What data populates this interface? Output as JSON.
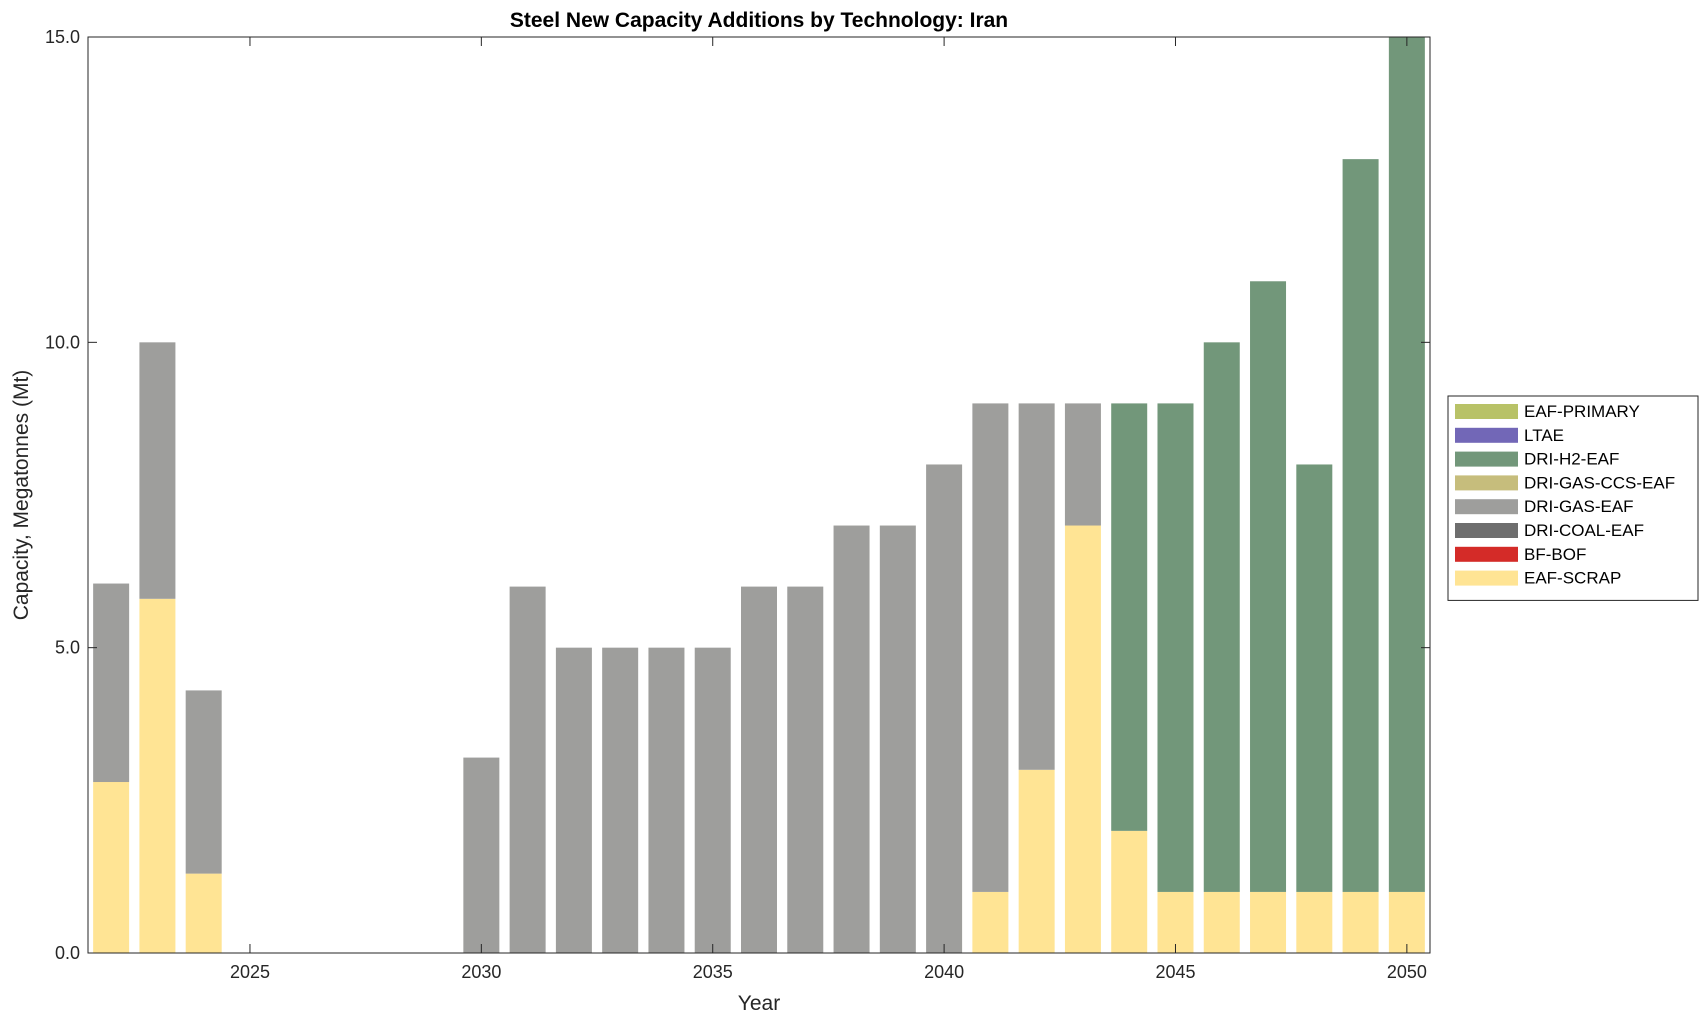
{
  "chart_data": {
    "type": "bar",
    "stacked": true,
    "title": "Steel New Capacity Additions by Technology: Iran",
    "xlabel": "Year",
    "ylabel": "Capacity, Megatonnes (Mt)",
    "xlim": [
      2021.5,
      2050.5
    ],
    "ylim": [
      0,
      15
    ],
    "x_ticks": [
      2025,
      2030,
      2035,
      2040,
      2045,
      2050
    ],
    "y_ticks": [
      0,
      5,
      10,
      15
    ],
    "y_tick_labels": [
      "0.0",
      "5.0",
      "10.0",
      "15.0"
    ],
    "grid": false,
    "legend_position": "right",
    "x": [
      2022,
      2023,
      2024,
      2025,
      2026,
      2027,
      2028,
      2029,
      2030,
      2031,
      2032,
      2033,
      2034,
      2035,
      2036,
      2037,
      2038,
      2039,
      2040,
      2041,
      2042,
      2043,
      2044,
      2045,
      2046,
      2047,
      2048,
      2049,
      2050
    ],
    "series": [
      {
        "name": "EAF-SCRAP",
        "color": "#FFE494",
        "values": [
          2.8,
          5.8,
          1.3,
          0,
          0,
          0,
          0,
          0,
          0,
          0,
          0,
          0,
          0,
          0,
          0,
          0,
          0,
          0,
          0,
          1,
          3,
          7,
          2,
          1,
          1,
          1,
          1,
          1,
          1
        ]
      },
      {
        "name": "BF-BOF",
        "color": "#D42B28",
        "values": [
          0,
          0,
          0,
          0,
          0,
          0,
          0,
          0,
          0,
          0,
          0,
          0,
          0,
          0,
          0,
          0,
          0,
          0,
          0,
          0,
          0,
          0,
          0,
          0,
          0,
          0,
          0,
          0,
          0
        ]
      },
      {
        "name": "DRI-COAL-EAF",
        "color": "#6E6E6E",
        "values": [
          0,
          0,
          0,
          0,
          0,
          0,
          0,
          0,
          0,
          0,
          0,
          0,
          0,
          0,
          0,
          0,
          0,
          0,
          0,
          0,
          0,
          0,
          0,
          0,
          0,
          0,
          0,
          0,
          0
        ]
      },
      {
        "name": "DRI-GAS-EAF",
        "color": "#9E9E9C",
        "values": [
          3.25,
          4.2,
          3.0,
          0,
          0,
          0,
          0,
          0,
          3.2,
          6,
          5,
          5,
          5,
          5,
          6,
          6,
          7,
          7,
          8,
          8,
          6,
          2,
          0,
          0,
          0,
          0,
          0,
          0,
          0
        ]
      },
      {
        "name": "DRI-GAS-CCS-EAF",
        "color": "#C6BD7C",
        "values": [
          0,
          0,
          0,
          0,
          0,
          0,
          0,
          0,
          0,
          0,
          0,
          0,
          0,
          0,
          0,
          0,
          0,
          0,
          0,
          0,
          0,
          0,
          0,
          0,
          0,
          0,
          0,
          0,
          0
        ]
      },
      {
        "name": "DRI-H2-EAF",
        "color": "#72977A",
        "values": [
          0,
          0,
          0,
          0,
          0,
          0,
          0,
          0,
          0,
          0,
          0,
          0,
          0,
          0,
          0,
          0,
          0,
          0,
          0,
          0,
          0,
          0,
          7,
          8,
          9,
          10,
          7,
          12,
          14
        ]
      },
      {
        "name": "LTAE",
        "color": "#7267B7",
        "values": [
          0,
          0,
          0,
          0,
          0,
          0,
          0,
          0,
          0,
          0,
          0,
          0,
          0,
          0,
          0,
          0,
          0,
          0,
          0,
          0,
          0,
          0,
          0,
          0,
          0,
          0,
          0,
          0,
          0
        ]
      },
      {
        "name": "EAF-PRIMARY",
        "color": "#B8C267",
        "values": [
          0,
          0,
          0,
          0,
          0,
          0,
          0,
          0,
          0,
          0,
          0,
          0,
          0,
          0,
          0,
          0,
          0,
          0,
          0,
          0,
          0,
          0,
          0,
          0,
          0,
          0,
          0,
          0,
          0
        ]
      }
    ],
    "legend_order": [
      "EAF-PRIMARY",
      "LTAE",
      "DRI-H2-EAF",
      "DRI-GAS-CCS-EAF",
      "DRI-GAS-EAF",
      "DRI-COAL-EAF",
      "BF-BOF",
      "EAF-SCRAP"
    ]
  }
}
